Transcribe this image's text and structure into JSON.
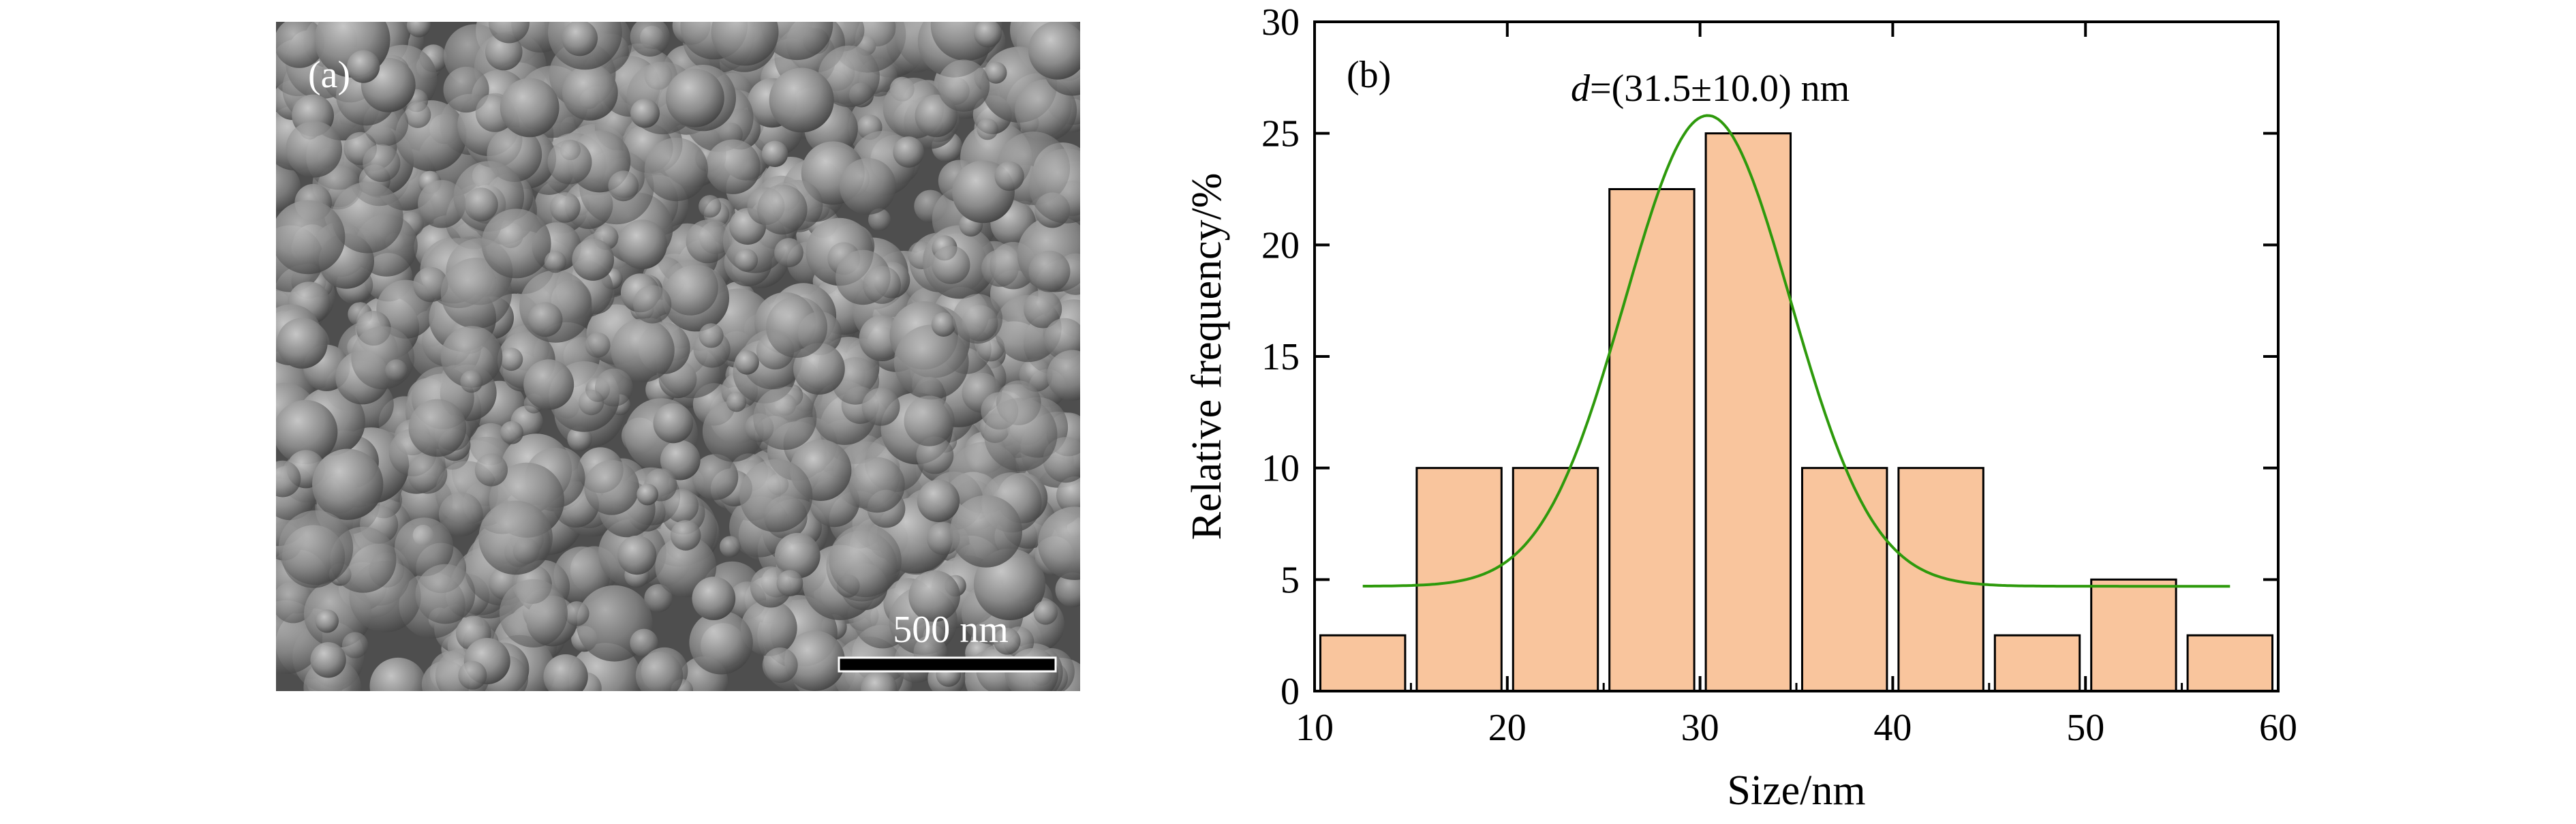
{
  "panel_a": {
    "label": "(a)",
    "scale_bar_label": "500 nm"
  },
  "panel_b": {
    "label": "(b)",
    "annotation_d": "d",
    "annotation_rest": "=(31.5±10.0) nm"
  },
  "colors": {
    "bar_fill": "#F9C59D",
    "bar_stroke": "#000000",
    "fit_line": "#2E9A0C",
    "sem_background": "#5a5a5a"
  },
  "chart_data": {
    "type": "bar",
    "title": "",
    "xlabel": "Size/nm",
    "ylabel": "Relative frequency/%",
    "xlim": [
      10,
      60
    ],
    "ylim": [
      0,
      30
    ],
    "xticks": [
      10,
      20,
      30,
      40,
      50,
      60
    ],
    "yticks": [
      0,
      5,
      10,
      15,
      20,
      25,
      30
    ],
    "bin_width": 5,
    "bins": [
      {
        "center": 12.5,
        "value": 2.5
      },
      {
        "center": 17.5,
        "value": 10
      },
      {
        "center": 22.5,
        "value": 10
      },
      {
        "center": 27.5,
        "value": 22.5
      },
      {
        "center": 32.5,
        "value": 25
      },
      {
        "center": 37.5,
        "value": 10
      },
      {
        "center": 42.5,
        "value": 10
      },
      {
        "center": 47.5,
        "value": 2.5
      },
      {
        "center": 52.5,
        "value": 5
      },
      {
        "center": 57.5,
        "value": 2.5
      }
    ],
    "fit": {
      "type": "gaussian",
      "baseline": 4.7,
      "amplitude": 21.1,
      "center": 30.4,
      "sigma": 4.3,
      "x_range": [
        12.5,
        57.5
      ]
    },
    "annotation": "d=(31.5±10.0) nm"
  }
}
